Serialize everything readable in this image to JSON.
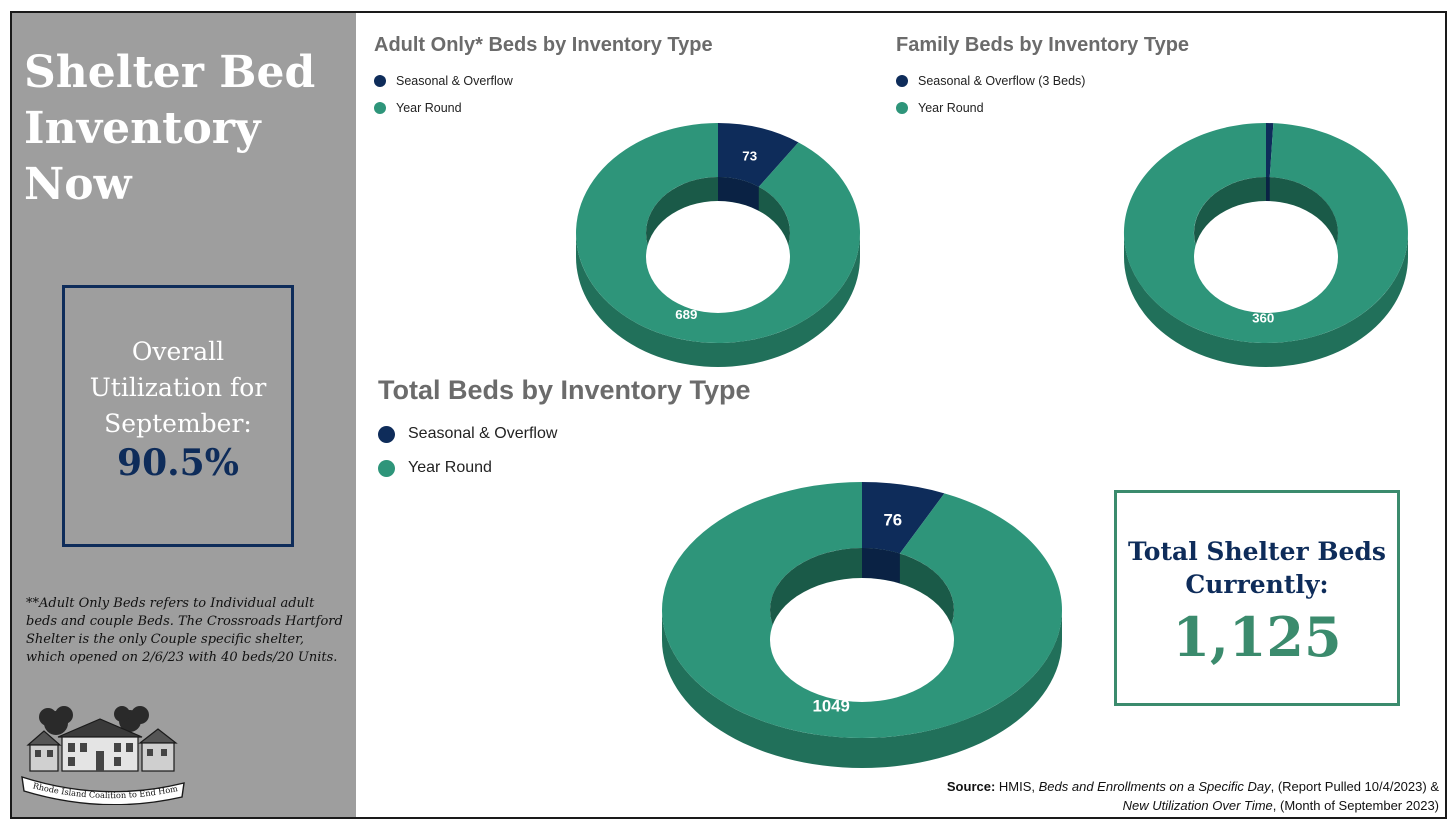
{
  "sidebar": {
    "title_lines": [
      "Shelter Bed",
      "Inventory",
      "Now"
    ],
    "utilization": {
      "label_lines": [
        "Overall",
        "Utilization for",
        "September:"
      ],
      "value": "90.5%"
    },
    "footnote": "**Adult Only Beds refers to Individual adult beds and couple Beds. The Crossroads Hartford Shelter is the only Couple specific shelter, which opened on 2/6/23 with 40 beds/20 Units.",
    "logo": {
      "text": "Rhode Island Coalition to End Homelessness"
    }
  },
  "colors": {
    "seasonal": "#0e2c5a",
    "year_round": "#2e957a",
    "side": "#21705a",
    "inner": "#1a5a48"
  },
  "chart_data": [
    {
      "type": "pie",
      "title": "Adult Only* Beds by Inventory Type",
      "legend": [
        "Seasonal & Overflow",
        "Year Round"
      ],
      "categories": [
        "Seasonal & Overflow",
        "Year Round"
      ],
      "values": [
        73,
        689
      ],
      "labels": [
        "73",
        "689"
      ]
    },
    {
      "type": "pie",
      "title": "Family Beds by Inventory Type",
      "legend": [
        "Seasonal & Overflow (3 Beds)",
        "Year Round"
      ],
      "categories": [
        "Seasonal & Overflow",
        "Year Round"
      ],
      "values": [
        3,
        360
      ],
      "labels": [
        "",
        "360"
      ]
    },
    {
      "type": "pie",
      "title": "Total Beds by Inventory Type",
      "legend": [
        "Seasonal & Overflow",
        "Year Round"
      ],
      "categories": [
        "Seasonal & Overflow",
        "Year Round"
      ],
      "values": [
        76,
        1049
      ],
      "labels": [
        "76",
        "1049"
      ]
    }
  ],
  "total_box": {
    "label_lines": [
      "Total Shelter Beds",
      "Currently:"
    ],
    "value": "1,125"
  },
  "source": {
    "prefix": "Source:",
    "line1_pre": " HMIS, ",
    "line1_italic": "Beds and Enrollments on a Specific Day",
    "line1_post": ", (Report Pulled 10/4/2023) &",
    "line2_italic": "New Utilization Over Time",
    "line2_post": ", (Month of September 2023)"
  }
}
